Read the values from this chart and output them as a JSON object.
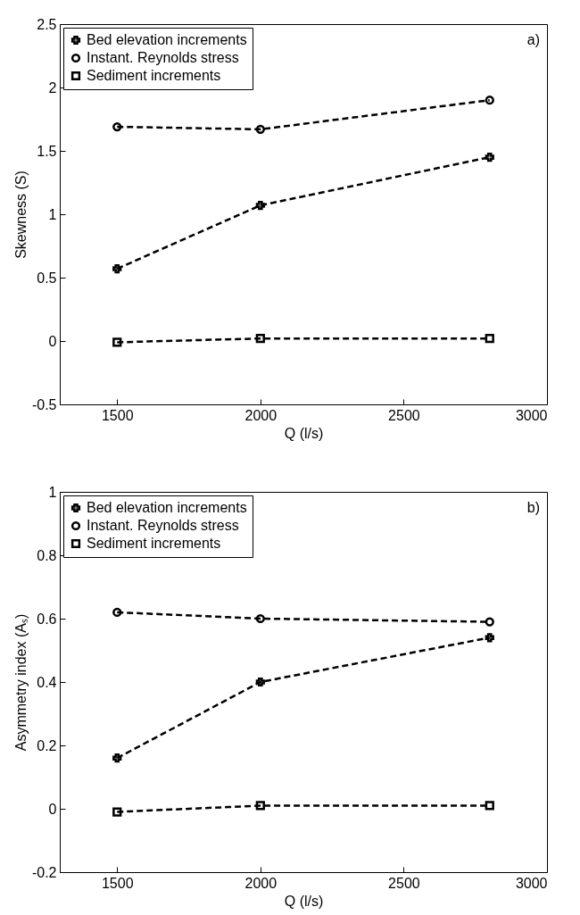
{
  "chart_data": [
    {
      "type": "line",
      "xlabel": "Q (l/s)",
      "ylabel": "Skewness (S)",
      "annotations": [
        "a)"
      ],
      "x": [
        1500,
        2000,
        2800
      ],
      "xlim": [
        1300,
        3000
      ],
      "xticks": [
        1500,
        2000,
        2500,
        3000
      ],
      "ylim": [
        -0.5,
        2.5
      ],
      "yticks": [
        -0.5,
        0,
        0.5,
        1,
        1.5,
        2,
        2.5
      ],
      "legend": "top left",
      "line_style": "dashed",
      "series": [
        {
          "name": "Bed elevation increments",
          "color": "#000000",
          "marker": "cross",
          "values": [
            0.57,
            1.07,
            1.45
          ]
        },
        {
          "name": "Instant. Reynolds stress",
          "color": "#000000",
          "marker": "circle",
          "values": [
            1.69,
            1.67,
            1.9
          ]
        },
        {
          "name": "Sediment increments",
          "color": "#000000",
          "marker": "square",
          "values": [
            -0.01,
            0.02,
            0.02
          ]
        }
      ]
    },
    {
      "type": "line",
      "xlabel": "Q (l/s)",
      "ylabel": "Asymmetry index (Aₛ)",
      "annotations": [
        "b)"
      ],
      "x": [
        1500,
        2000,
        2800
      ],
      "xlim": [
        1300,
        3000
      ],
      "xticks": [
        1500,
        2000,
        2500,
        3000
      ],
      "ylim": [
        -0.2,
        1
      ],
      "yticks": [
        -0.2,
        0,
        0.2,
        0.4,
        0.6,
        0.8,
        1
      ],
      "legend": "top left",
      "line_style": "dashed",
      "series": [
        {
          "name": "Bed elevation increments",
          "color": "#000000",
          "marker": "cross",
          "values": [
            0.16,
            0.4,
            0.54
          ]
        },
        {
          "name": "Instant. Reynolds stress",
          "color": "#000000",
          "marker": "circle",
          "values": [
            0.62,
            0.6,
            0.59
          ]
        },
        {
          "name": "Sediment increments",
          "color": "#000000",
          "marker": "square",
          "values": [
            -0.01,
            0.01,
            0.01
          ]
        }
      ]
    }
  ]
}
